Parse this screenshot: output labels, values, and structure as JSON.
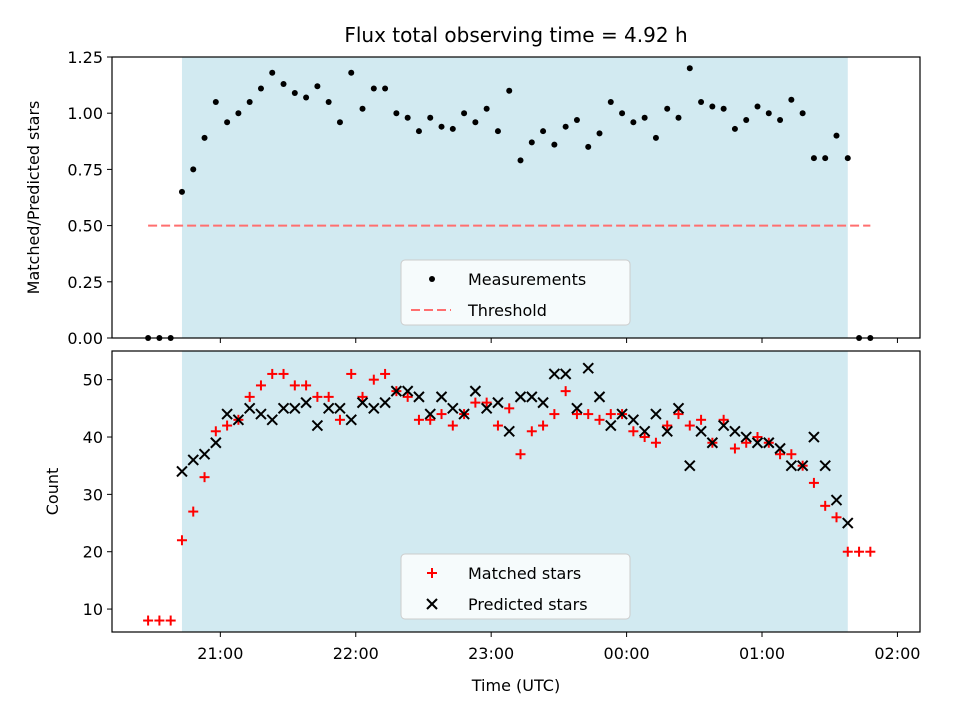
{
  "title": "Flux total observing time = 4.92 h",
  "xlabel": "Time (UTC)",
  "colors": {
    "observing_span": "#add8e6",
    "measurements": "#000000",
    "threshold": "#ff6f6f",
    "matched": "#ff0000",
    "predicted": "#000000"
  },
  "x_ticks": [
    "21:00",
    "22:00",
    "23:00",
    "00:00",
    "01:00",
    "02:00"
  ],
  "chart_data": [
    {
      "type": "scatter",
      "ylabel": "Matched/Predicted stars",
      "ylim": [
        0,
        1.25
      ],
      "y_ticks": [
        "0.00",
        "0.25",
        "0.50",
        "0.75",
        "1.00",
        "1.25"
      ],
      "xlim": [
        "20:12",
        "02:10"
      ],
      "observing_span": [
        "20:43",
        "01:38"
      ],
      "legend": {
        "placement": "lower-center",
        "entries": [
          "Measurements",
          "Threshold"
        ]
      },
      "threshold": {
        "name": "Threshold",
        "value": 0.5,
        "x_range": [
          "20:28",
          "01:48"
        ]
      },
      "series": [
        {
          "name": "Measurements",
          "points": [
            [
              "20:28",
              0
            ],
            [
              "20:33",
              0
            ],
            [
              "20:38",
              0
            ],
            [
              "20:43",
              0.65
            ],
            [
              "20:48",
              0.75
            ],
            [
              "20:53",
              0.89
            ],
            [
              "20:58",
              1.05
            ],
            [
              "21:03",
              0.96
            ],
            [
              "21:08",
              1.0
            ],
            [
              "21:13",
              1.05
            ],
            [
              "21:18",
              1.11
            ],
            [
              "21:23",
              1.18
            ],
            [
              "21:28",
              1.13
            ],
            [
              "21:33",
              1.09
            ],
            [
              "21:38",
              1.07
            ],
            [
              "21:43",
              1.12
            ],
            [
              "21:48",
              1.05
            ],
            [
              "21:53",
              0.96
            ],
            [
              "21:58",
              1.18
            ],
            [
              "22:03",
              1.02
            ],
            [
              "22:08",
              1.11
            ],
            [
              "22:13",
              1.11
            ],
            [
              "22:18",
              1.0
            ],
            [
              "22:23",
              0.98
            ],
            [
              "22:28",
              0.92
            ],
            [
              "22:33",
              0.98
            ],
            [
              "22:38",
              0.94
            ],
            [
              "22:43",
              0.93
            ],
            [
              "22:48",
              1.0
            ],
            [
              "22:53",
              0.96
            ],
            [
              "22:58",
              1.02
            ],
            [
              "23:03",
              0.92
            ],
            [
              "23:08",
              1.1
            ],
            [
              "23:13",
              0.79
            ],
            [
              "23:18",
              0.87
            ],
            [
              "23:23",
              0.92
            ],
            [
              "23:28",
              0.86
            ],
            [
              "23:33",
              0.94
            ],
            [
              "23:38",
              0.97
            ],
            [
              "23:43",
              0.85
            ],
            [
              "23:48",
              0.91
            ],
            [
              "23:53",
              1.05
            ],
            [
              "23:58",
              1.0
            ],
            [
              "00:03",
              0.96
            ],
            [
              "00:08",
              0.98
            ],
            [
              "00:13",
              0.89
            ],
            [
              "00:18",
              1.02
            ],
            [
              "00:23",
              0.98
            ],
            [
              "00:28",
              1.2
            ],
            [
              "00:33",
              1.05
            ],
            [
              "00:38",
              1.03
            ],
            [
              "00:43",
              1.02
            ],
            [
              "00:48",
              0.93
            ],
            [
              "00:53",
              0.97
            ],
            [
              "00:58",
              1.03
            ],
            [
              "01:03",
              1.0
            ],
            [
              "01:08",
              0.97
            ],
            [
              "01:13",
              1.06
            ],
            [
              "01:18",
              1.0
            ],
            [
              "01:23",
              0.8
            ],
            [
              "01:28",
              0.8
            ],
            [
              "01:33",
              0.9
            ],
            [
              "01:38",
              0.8
            ],
            [
              "01:43",
              0
            ],
            [
              "01:48",
              0
            ]
          ]
        }
      ]
    },
    {
      "type": "scatter",
      "ylabel": "Count",
      "ylim": [
        6,
        55
      ],
      "y_ticks": [
        "10",
        "20",
        "30",
        "40",
        "50"
      ],
      "xlim": [
        "20:12",
        "02:10"
      ],
      "observing_span": [
        "20:43",
        "01:38"
      ],
      "legend": {
        "placement": "lower-center",
        "entries": [
          "Matched stars",
          "Predicted stars"
        ]
      },
      "series": [
        {
          "name": "Matched stars",
          "marker": "+",
          "points": [
            [
              "20:28",
              8
            ],
            [
              "20:33",
              8
            ],
            [
              "20:38",
              8
            ],
            [
              "20:43",
              22
            ],
            [
              "20:48",
              27
            ],
            [
              "20:53",
              33
            ],
            [
              "20:58",
              41
            ],
            [
              "21:03",
              42
            ],
            [
              "21:08",
              43
            ],
            [
              "21:13",
              47
            ],
            [
              "21:18",
              49
            ],
            [
              "21:23",
              51
            ],
            [
              "21:28",
              51
            ],
            [
              "21:33",
              49
            ],
            [
              "21:38",
              49
            ],
            [
              "21:43",
              47
            ],
            [
              "21:48",
              47
            ],
            [
              "21:53",
              43
            ],
            [
              "21:58",
              51
            ],
            [
              "22:03",
              47
            ],
            [
              "22:08",
              50
            ],
            [
              "22:13",
              51
            ],
            [
              "22:18",
              48
            ],
            [
              "22:23",
              47
            ],
            [
              "22:28",
              43
            ],
            [
              "22:33",
              43
            ],
            [
              "22:38",
              44
            ],
            [
              "22:43",
              42
            ],
            [
              "22:48",
              44
            ],
            [
              "22:53",
              46
            ],
            [
              "22:58",
              46
            ],
            [
              "23:03",
              42
            ],
            [
              "23:08",
              45
            ],
            [
              "23:13",
              37
            ],
            [
              "23:18",
              41
            ],
            [
              "23:23",
              42
            ],
            [
              "23:28",
              44
            ],
            [
              "23:33",
              48
            ],
            [
              "23:38",
              44
            ],
            [
              "23:43",
              44
            ],
            [
              "23:48",
              43
            ],
            [
              "23:53",
              44
            ],
            [
              "23:58",
              44
            ],
            [
              "00:03",
              41
            ],
            [
              "00:08",
              40
            ],
            [
              "00:13",
              39
            ],
            [
              "00:18",
              42
            ],
            [
              "00:23",
              44
            ],
            [
              "00:28",
              42
            ],
            [
              "00:33",
              43
            ],
            [
              "00:38",
              39
            ],
            [
              "00:43",
              43
            ],
            [
              "00:48",
              38
            ],
            [
              "00:53",
              39
            ],
            [
              "00:58",
              40
            ],
            [
              "01:03",
              39
            ],
            [
              "01:08",
              37
            ],
            [
              "01:13",
              37
            ],
            [
              "01:18",
              35
            ],
            [
              "01:23",
              32
            ],
            [
              "01:28",
              28
            ],
            [
              "01:33",
              26
            ],
            [
              "01:38",
              20
            ],
            [
              "01:43",
              20
            ],
            [
              "01:48",
              20
            ]
          ]
        },
        {
          "name": "Predicted stars",
          "marker": "x",
          "points": [
            [
              "20:43",
              34
            ],
            [
              "20:48",
              36
            ],
            [
              "20:53",
              37
            ],
            [
              "20:58",
              39
            ],
            [
              "21:03",
              44
            ],
            [
              "21:08",
              43
            ],
            [
              "21:13",
              45
            ],
            [
              "21:18",
              44
            ],
            [
              "21:23",
              43
            ],
            [
              "21:28",
              45
            ],
            [
              "21:33",
              45
            ],
            [
              "21:38",
              46
            ],
            [
              "21:43",
              42
            ],
            [
              "21:48",
              45
            ],
            [
              "21:53",
              45
            ],
            [
              "21:58",
              43
            ],
            [
              "22:03",
              46
            ],
            [
              "22:08",
              45
            ],
            [
              "22:13",
              46
            ],
            [
              "22:18",
              48
            ],
            [
              "22:23",
              48
            ],
            [
              "22:28",
              47
            ],
            [
              "22:33",
              44
            ],
            [
              "22:38",
              47
            ],
            [
              "22:43",
              45
            ],
            [
              "22:48",
              44
            ],
            [
              "22:53",
              48
            ],
            [
              "22:58",
              45
            ],
            [
              "23:03",
              46
            ],
            [
              "23:08",
              41
            ],
            [
              "23:13",
              47
            ],
            [
              "23:18",
              47
            ],
            [
              "23:23",
              46
            ],
            [
              "23:28",
              51
            ],
            [
              "23:33",
              51
            ],
            [
              "23:38",
              45
            ],
            [
              "23:43",
              52
            ],
            [
              "23:48",
              47
            ],
            [
              "23:53",
              42
            ],
            [
              "23:58",
              44
            ],
            [
              "00:03",
              43
            ],
            [
              "00:08",
              41
            ],
            [
              "00:13",
              44
            ],
            [
              "00:18",
              41
            ],
            [
              "00:23",
              45
            ],
            [
              "00:28",
              35
            ],
            [
              "00:33",
              41
            ],
            [
              "00:38",
              39
            ],
            [
              "00:43",
              42
            ],
            [
              "00:48",
              41
            ],
            [
              "00:53",
              40
            ],
            [
              "00:58",
              39
            ],
            [
              "01:03",
              39
            ],
            [
              "01:08",
              38
            ],
            [
              "01:13",
              35
            ],
            [
              "01:18",
              35
            ],
            [
              "01:23",
              40
            ],
            [
              "01:28",
              35
            ],
            [
              "01:33",
              29
            ],
            [
              "01:38",
              25
            ]
          ]
        }
      ]
    }
  ]
}
